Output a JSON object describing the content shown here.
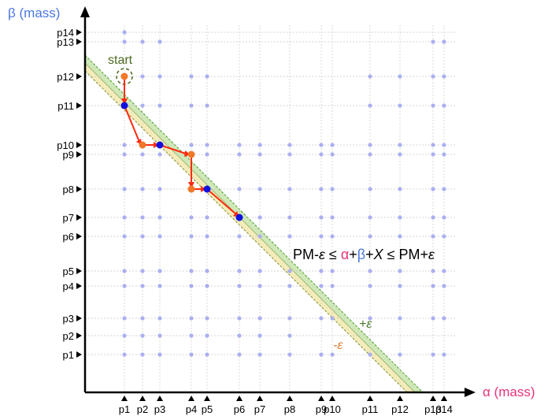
{
  "axes": {
    "x_title": "α (mass)",
    "y_title": "β (mass)"
  },
  "x_ticks": [
    "p1",
    "p2",
    "p3",
    "p4",
    "p5",
    "p6",
    "p7",
    "p8",
    "p9",
    "p10",
    "p11",
    "p12",
    "p13",
    "p14"
  ],
  "y_ticks": [
    "p1",
    "p2",
    "p3",
    "p4",
    "p5",
    "p6",
    "p7",
    "p8",
    "p9",
    "p10",
    "p11",
    "p12",
    "p13",
    "p14"
  ],
  "start_label": "start",
  "formula": {
    "left": "PM-",
    "eps1": "ε",
    "le1": " ≤ ",
    "alpha": "α",
    "plus1": "+",
    "beta": "β",
    "plus2": "+",
    "x": "X",
    "le2": " ≤ PM+",
    "eps2": "ε"
  },
  "band_labels": {
    "plus": "+ε",
    "minus": "-ε"
  },
  "colors": {
    "alpha": "#e8327a",
    "beta": "#4a78e0",
    "grid_point": "#aab0f0",
    "path": "#ff2a10",
    "orange_node": "#f07828",
    "blue_node": "#1010e0",
    "band_green": "#cfe8b8",
    "band_yellow": "#f3ecba",
    "plus_eps": "#4a7a2a",
    "minus_eps": "#e07a2a"
  }
}
